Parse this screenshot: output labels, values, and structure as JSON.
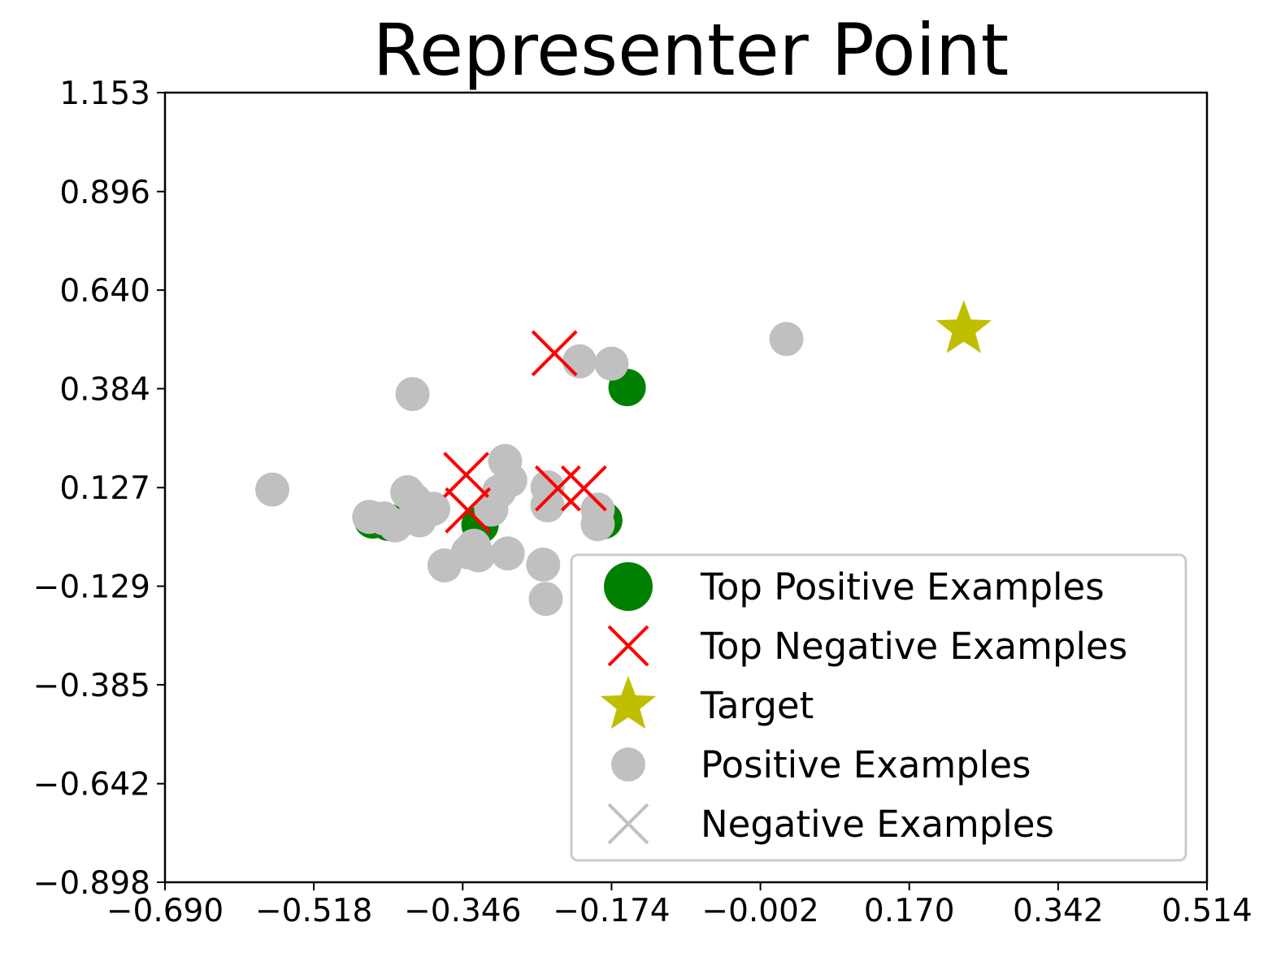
{
  "chart_data": {
    "type": "scatter",
    "title": "Representer Point",
    "xlabel": "",
    "ylabel": "",
    "xlim": [
      -0.69,
      0.514
    ],
    "ylim": [
      -0.898,
      1.153
    ],
    "xticks": [
      "−0.690",
      "−0.518",
      "−0.346",
      "−0.174",
      "−0.002",
      "0.170",
      "0.342",
      "0.514"
    ],
    "xtick_values": [
      -0.69,
      -0.518,
      -0.346,
      -0.174,
      -0.002,
      0.17,
      0.342,
      0.514
    ],
    "yticks": [
      "1.153",
      "0.896",
      "0.640",
      "0.384",
      "0.127",
      "−0.129",
      "−0.385",
      "−0.642",
      "−0.898"
    ],
    "ytick_values": [
      1.153,
      0.896,
      0.64,
      0.384,
      0.127,
      -0.129,
      -0.385,
      -0.642,
      -0.898
    ],
    "grid": false,
    "legend_position": "bottom-right",
    "series": [
      {
        "name": "Positive Examples",
        "marker": "circle",
        "color": "#c0c0c0",
        "points": [
          [
            -0.454,
            0.051
          ],
          [
            -0.437,
            0.047
          ],
          [
            -0.424,
            0.029
          ],
          [
            -0.41,
            0.115
          ],
          [
            -0.404,
            0.37
          ],
          [
            -0.402,
            0.095
          ],
          [
            -0.396,
            0.042
          ],
          [
            -0.38,
            0.072
          ],
          [
            -0.367,
            -0.075
          ],
          [
            -0.34,
            -0.041
          ],
          [
            -0.333,
            -0.024
          ],
          [
            -0.328,
            -0.049
          ],
          [
            -0.313,
            0.07
          ],
          [
            -0.304,
            0.117
          ],
          [
            -0.297,
            0.196
          ],
          [
            -0.291,
            0.146
          ],
          [
            -0.294,
            -0.044
          ],
          [
            -0.253,
            -0.073
          ],
          [
            -0.248,
            0.128
          ],
          [
            -0.248,
            0.081
          ],
          [
            -0.25,
            -0.162
          ],
          [
            -0.211,
            0.455
          ],
          [
            -0.19,
            0.07
          ],
          [
            -0.19,
            0.032
          ],
          [
            -0.174,
            0.449
          ],
          [
            -0.566,
            0.122
          ],
          [
            0.028,
            0.513
          ]
        ]
      },
      {
        "name": "Top Positive Examples",
        "marker": "circle",
        "color": "#008000",
        "points": [
          [
            -0.45,
            0.043
          ],
          [
            -0.432,
            0.037
          ],
          [
            -0.326,
            0.03
          ],
          [
            -0.183,
            0.042
          ],
          [
            -0.156,
            0.387
          ]
        ]
      },
      {
        "name": "Top Negative Examples",
        "marker": "x",
        "color": "#ff0000",
        "points": [
          [
            -0.342,
            0.16
          ],
          [
            -0.34,
            0.068
          ],
          [
            -0.236,
            0.125
          ],
          [
            -0.206,
            0.125
          ],
          [
            -0.24,
            0.476
          ]
        ]
      },
      {
        "name": "Target",
        "marker": "star",
        "color": "#bfbf00",
        "points": [
          [
            0.233,
            0.538
          ]
        ]
      },
      {
        "name": "Negative Examples",
        "marker": "x",
        "color": "#c0c0c0",
        "points": []
      }
    ],
    "legend": [
      {
        "label": "Top Positive Examples",
        "marker": "circle",
        "color": "#008000"
      },
      {
        "label": "Top Negative Examples",
        "marker": "x",
        "color": "#ff0000"
      },
      {
        "label": "Target",
        "marker": "star",
        "color": "#bfbf00"
      },
      {
        "label": "Positive Examples",
        "marker": "circle",
        "color": "#c0c0c0"
      },
      {
        "label": "Negative Examples",
        "marker": "x",
        "color": "#c0c0c0"
      }
    ]
  }
}
